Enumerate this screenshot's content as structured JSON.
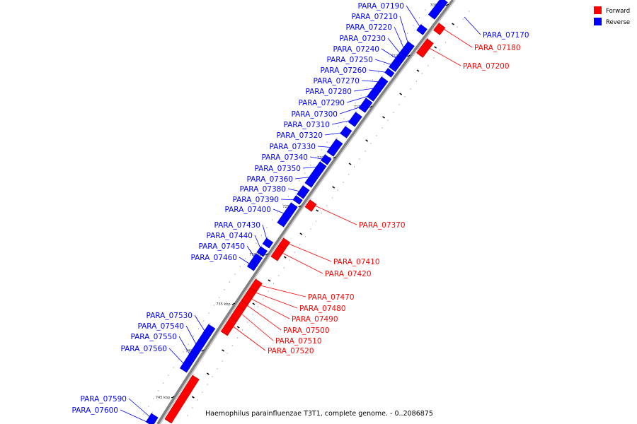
{
  "caption": "Haemophilus parainfluenzae T3T1, complete genome. - 0..2086875",
  "legend": [
    {
      "label": "Forward",
      "color": "#ff0000"
    },
    {
      "label": "Reverse",
      "color": "#0000ff"
    }
  ],
  "colors": {
    "forward": "#ff0000",
    "reverse": "#0000ff",
    "backbone": "#808080",
    "marker": "#000000"
  },
  "ticks": [
    "705 kbp",
    "710 kbp",
    "715 kbp",
    "720 kbp",
    "725 kbp",
    "730 kbp",
    "735 kbp",
    "740 kbp",
    "745 kbp"
  ],
  "reverse_genes": [
    "PARA_07190",
    "PARA_07210",
    "PARA_07220",
    "PARA_07230",
    "PARA_07240",
    "PARA_07250",
    "PARA_07260",
    "PARA_07270",
    "PARA_07280",
    "PARA_07290",
    "PARA_07300",
    "PARA_07310",
    "PARA_07320",
    "PARA_07330",
    "PARA_07340",
    "PARA_07350",
    "PARA_07360",
    "PARA_07380",
    "PARA_07390",
    "PARA_07400",
    "PARA_07430",
    "PARA_07440",
    "PARA_07450",
    "PARA_07460",
    "PARA_07530",
    "PARA_07540",
    "PARA_07550",
    "PARA_07560",
    "PARA_07590",
    "PARA_07600"
  ],
  "reverse_genes_right": [
    "PARA_07170"
  ],
  "forward_genes": [
    "PARA_07180",
    "PARA_07200",
    "PARA_07370",
    "PARA_07410",
    "PARA_07420",
    "PARA_07470",
    "PARA_07480",
    "PARA_07490",
    "PARA_07500",
    "PARA_07510",
    "PARA_07520"
  ]
}
